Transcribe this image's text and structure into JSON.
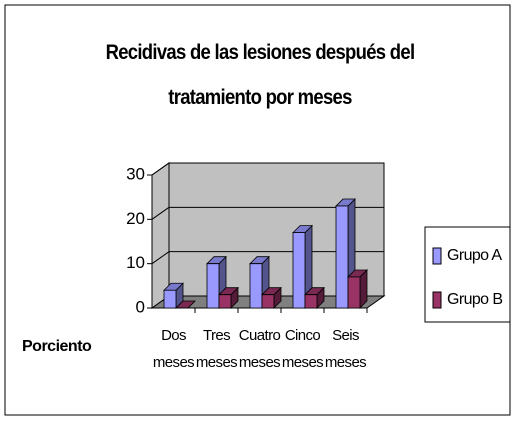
{
  "chart_data": {
    "type": "bar3d",
    "title": "Recidivas de las lesiones después del tratamiento por meses",
    "y_label": "Porciento",
    "categories": [
      "Dos meses",
      "Tres meses",
      "Cuatro meses",
      "Cinco meses",
      "Seis meses"
    ],
    "series": [
      {
        "name": "Grupo A",
        "color": "#9999ff",
        "values": [
          4,
          10,
          10,
          17,
          23
        ]
      },
      {
        "name": "Grupo B",
        "color": "#993366",
        "values": [
          0,
          3,
          3,
          3,
          7
        ]
      }
    ],
    "ylim": [
      0,
      30
    ],
    "yticks": [
      0,
      10,
      20,
      30
    ],
    "grid": true,
    "legend": "right"
  }
}
